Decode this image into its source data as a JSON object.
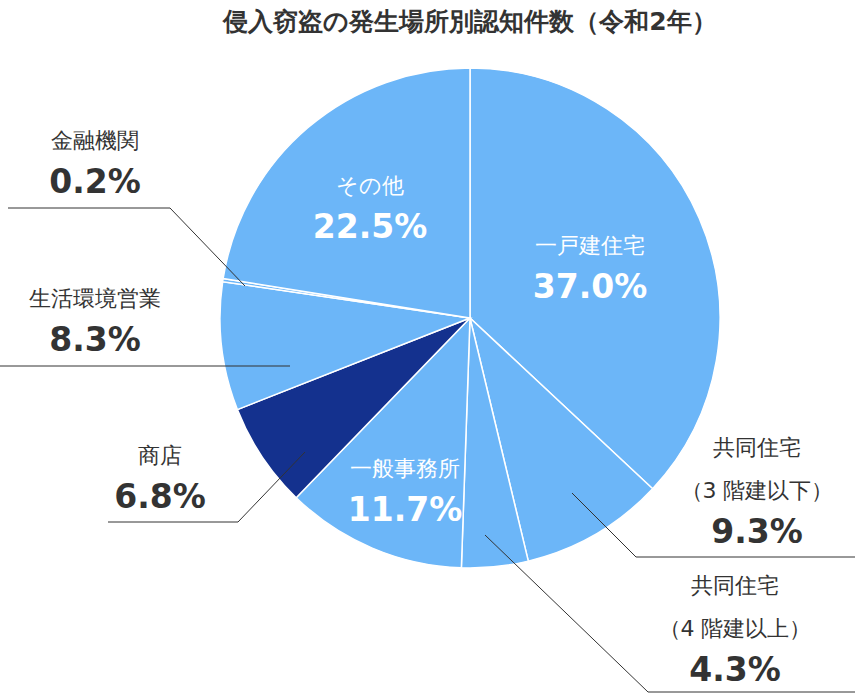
{
  "chart_data": {
    "type": "pie",
    "title": "侵入窃盗の発生場所別認知件数（令和2年）",
    "categories": [
      "一戸建住宅",
      "共同住宅（3 階建以下）",
      "共同住宅（4 階建以上）",
      "一般事務所",
      "商店",
      "生活環境営業",
      "金融機関",
      "その他"
    ],
    "values": [
      37.0,
      9.3,
      4.3,
      11.7,
      6.8,
      8.3,
      0.2,
      22.5
    ],
    "value_labels": [
      "37.0%",
      "9.3%",
      "4.3%",
      "11.7%",
      "6.8%",
      "8.3%",
      "0.2%",
      "22.5%"
    ],
    "colors": [
      "#6cb6f8",
      "#6cb6f8",
      "#6cb6f8",
      "#6cb6f8",
      "#14318e",
      "#6cb6f8",
      "#6cb6f8",
      "#6cb6f8"
    ],
    "data_labels": true
  }
}
